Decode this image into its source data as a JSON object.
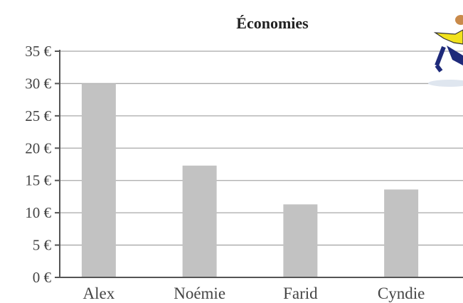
{
  "chart_data": {
    "type": "bar",
    "title": "Économies",
    "categories": [
      "Alex",
      "Noémie",
      "Farid",
      "Cyndie"
    ],
    "values": [
      30,
      17.3,
      11.3,
      13.6
    ],
    "ylim": [
      0,
      35
    ],
    "yticks": [
      0,
      5,
      10,
      15,
      20,
      25,
      30,
      35
    ],
    "ytick_labels": [
      "0 €",
      "5 €",
      "10 €",
      "15 €",
      "20 €",
      "25 €",
      "30 €",
      "35 €"
    ],
    "xlabel": "",
    "ylabel": "",
    "grid": true,
    "legend": "none",
    "bar_color": "#c2c2c2"
  },
  "decoration": {
    "icon": "running-kid-icon"
  }
}
